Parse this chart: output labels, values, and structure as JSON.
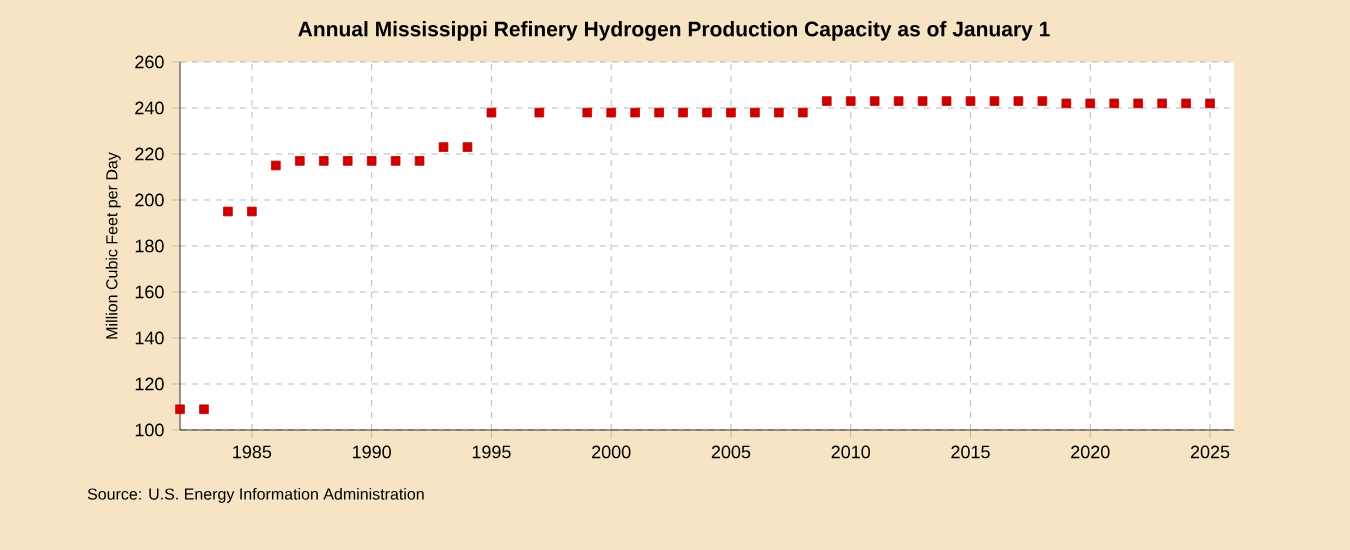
{
  "chart_data": {
    "type": "scatter",
    "title": "Annual Mississippi Refinery Hydrogen Production Capacity as of January 1",
    "ylabel": "Million Cubic Feet per Day",
    "annotations": [
      "Source: U.S. Energy Information Administration"
    ],
    "x": [
      1982,
      1983,
      1984,
      1985,
      1986,
      1987,
      1988,
      1989,
      1990,
      1991,
      1992,
      1993,
      1994,
      1995,
      1997,
      1999,
      2000,
      2001,
      2002,
      2003,
      2004,
      2005,
      2006,
      2007,
      2008,
      2009,
      2010,
      2011,
      2012,
      2013,
      2014,
      2015,
      2016,
      2017,
      2018,
      2019,
      2020,
      2021,
      2022,
      2023,
      2024,
      2025
    ],
    "values": [
      109,
      109,
      195,
      195,
      215,
      217,
      217,
      217,
      217,
      217,
      217,
      223,
      223,
      238,
      238,
      238,
      238,
      238,
      238,
      238,
      238,
      238,
      238,
      238,
      238,
      243,
      243,
      243,
      243,
      243,
      243,
      243,
      243,
      243,
      243,
      242,
      242,
      242,
      242,
      242,
      242,
      242
    ],
    "color": "#cc0000",
    "marker": "square",
    "grid": true,
    "xlim": [
      1982,
      2026
    ],
    "xticks": [
      1985,
      1990,
      1995,
      2000,
      2005,
      2010,
      2015,
      2020,
      2025
    ],
    "ylim": [
      100,
      260
    ],
    "yticks": [
      100,
      120,
      140,
      160,
      180,
      200,
      220,
      240,
      260
    ]
  }
}
